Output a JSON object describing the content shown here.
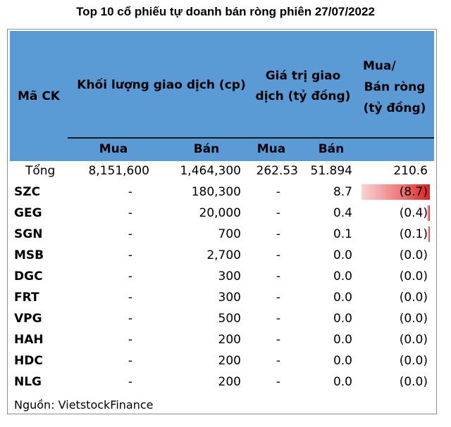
{
  "title": "Top 10 cổ phiếu tự doanh bán ròng phiên 27/07/2022",
  "header": {
    "code": "Mã CK",
    "volume": "Khối lượng giao dịch (cp)",
    "value_line1": "Giá trị giao",
    "value_line2": "dịch (tỷ đồng)",
    "net_line1": "Mua/",
    "net_line2": "Bán ròng",
    "net_line3": "(tỷ đồng)",
    "sub": [
      "Mua",
      "Bán",
      "Mua",
      "Bán"
    ]
  },
  "total": {
    "label": "Tổng",
    "vol_buy": "8,151,600",
    "vol_sell": "1,464,300",
    "val_buy": "262.53",
    "val_sell": "51.894",
    "net": "210.6"
  },
  "rows": [
    {
      "code": "SZC",
      "vol_buy": "-",
      "vol_sell": "180,300",
      "val_buy": "-",
      "val_sell": "8.7",
      "net": "(8.7)",
      "net_value": -8.7
    },
    {
      "code": "GEG",
      "vol_buy": "-",
      "vol_sell": "20,000",
      "val_buy": "-",
      "val_sell": "0.4",
      "net": "(0.4)",
      "net_value": -0.4
    },
    {
      "code": "SGN",
      "vol_buy": "-",
      "vol_sell": "700",
      "val_buy": "-",
      "val_sell": "0.1",
      "net": "(0.1)",
      "net_value": -0.1
    },
    {
      "code": "MSB",
      "vol_buy": "-",
      "vol_sell": "2,700",
      "val_buy": "-",
      "val_sell": "0.0",
      "net": "(0.0)",
      "net_value": 0
    },
    {
      "code": "DGC",
      "vol_buy": "-",
      "vol_sell": "300",
      "val_buy": "-",
      "val_sell": "0.0",
      "net": "(0.0)",
      "net_value": 0
    },
    {
      "code": "FRT",
      "vol_buy": "-",
      "vol_sell": "300",
      "val_buy": "-",
      "val_sell": "0.0",
      "net": "(0.0)",
      "net_value": 0
    },
    {
      "code": "VPG",
      "vol_buy": "-",
      "vol_sell": "500",
      "val_buy": "-",
      "val_sell": "0.0",
      "net": "(0.0)",
      "net_value": 0
    },
    {
      "code": "HAH",
      "vol_buy": "-",
      "vol_sell": "200",
      "val_buy": "-",
      "val_sell": "0.0",
      "net": "(0.0)",
      "net_value": 0
    },
    {
      "code": "HDC",
      "vol_buy": "-",
      "vol_sell": "200",
      "val_buy": "-",
      "val_sell": "0.0",
      "net": "(0.0)",
      "net_value": 0
    },
    {
      "code": "NLG",
      "vol_buy": "-",
      "vol_sell": "200",
      "val_buy": "-",
      "val_sell": "0.0",
      "net": "(0.0)",
      "net_value": 0
    }
  ],
  "source": "Nguồn: VietstockFinance",
  "colors": {
    "header_bg": "#5b9bd5",
    "bar": "#dd2222"
  }
}
